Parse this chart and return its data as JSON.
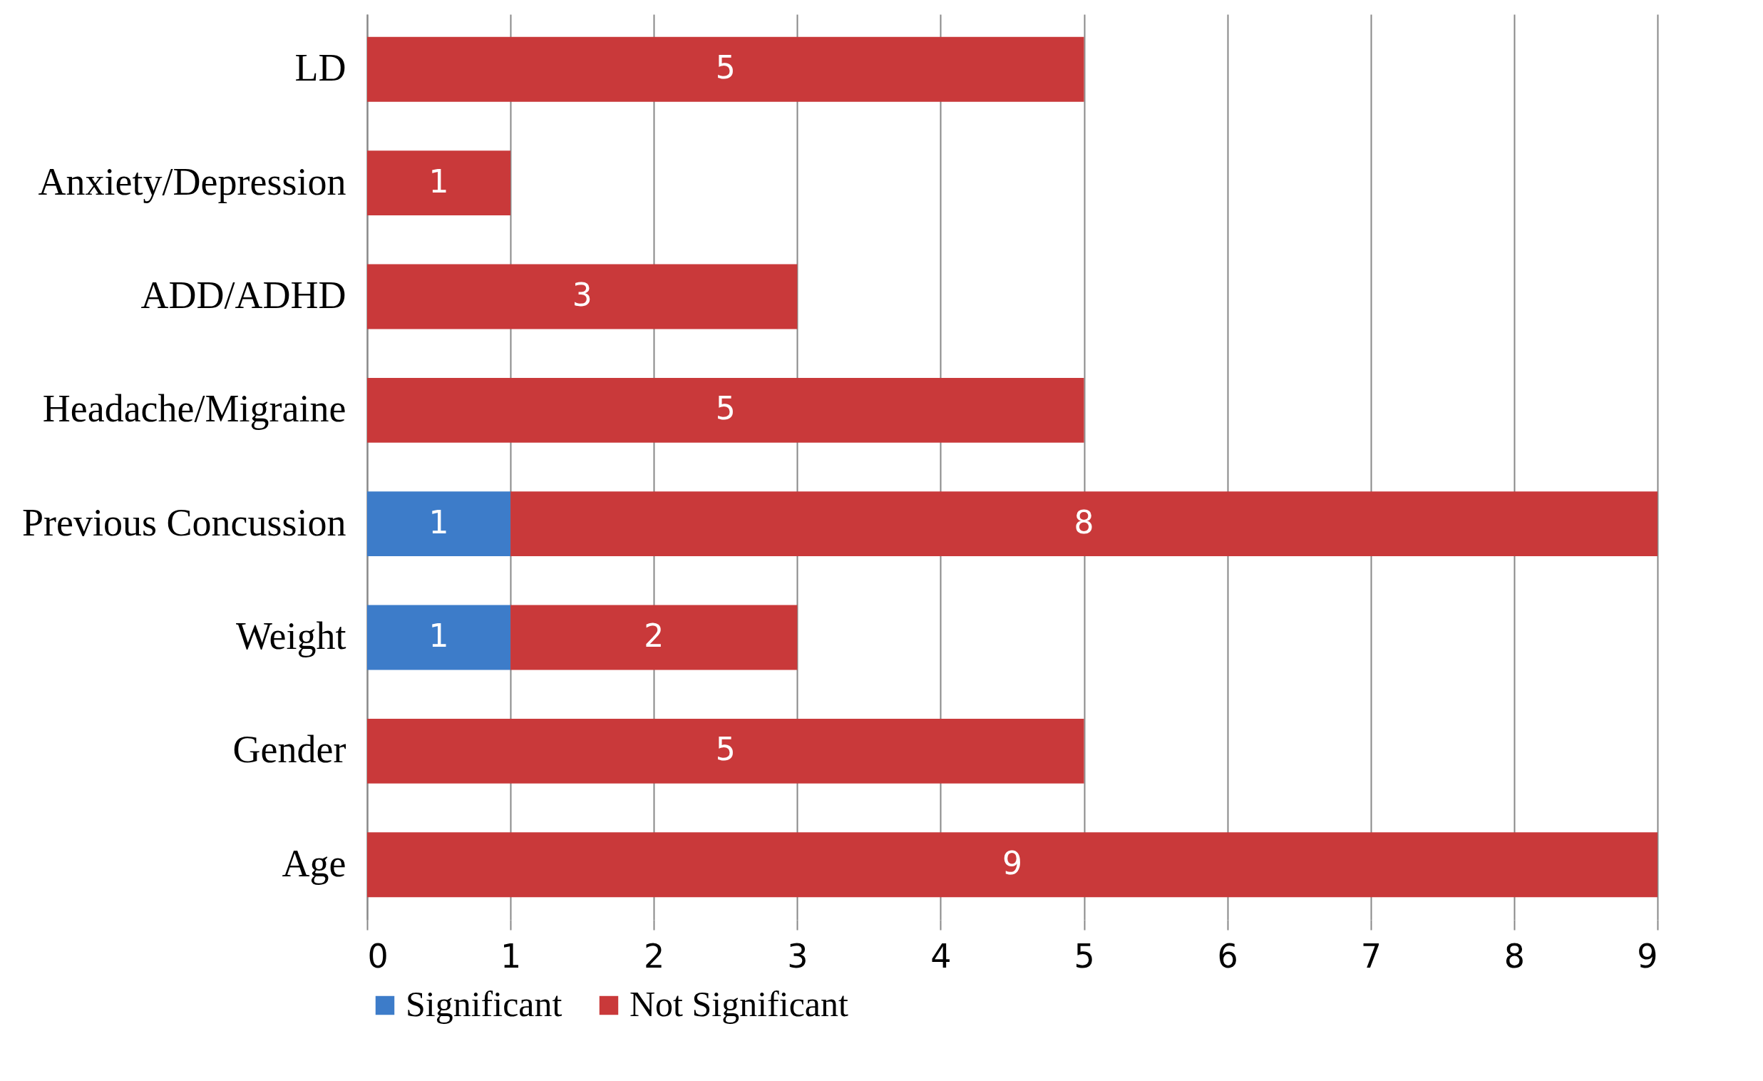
{
  "chart_data": {
    "type": "bar",
    "orientation": "horizontal",
    "stacked": true,
    "categories": [
      "LD",
      "Anxiety/Depression",
      "ADD/ADHD",
      "Headache/Migraine",
      "Previous Concussion",
      "Weight",
      "Gender",
      "Age"
    ],
    "series": [
      {
        "name": "Significant",
        "color": "#3d7cc9",
        "values": [
          null,
          null,
          null,
          null,
          1,
          1,
          null,
          null
        ]
      },
      {
        "name": "Not Significant",
        "color": "#c9393a",
        "values": [
          5,
          1,
          3,
          5,
          8,
          2,
          5,
          9
        ]
      }
    ],
    "xlim": [
      0,
      9
    ],
    "xticks": [
      0,
      1,
      2,
      3,
      4,
      5,
      6,
      7,
      8,
      9
    ],
    "grid": "x",
    "legend": "bottom",
    "data_labels": true
  }
}
